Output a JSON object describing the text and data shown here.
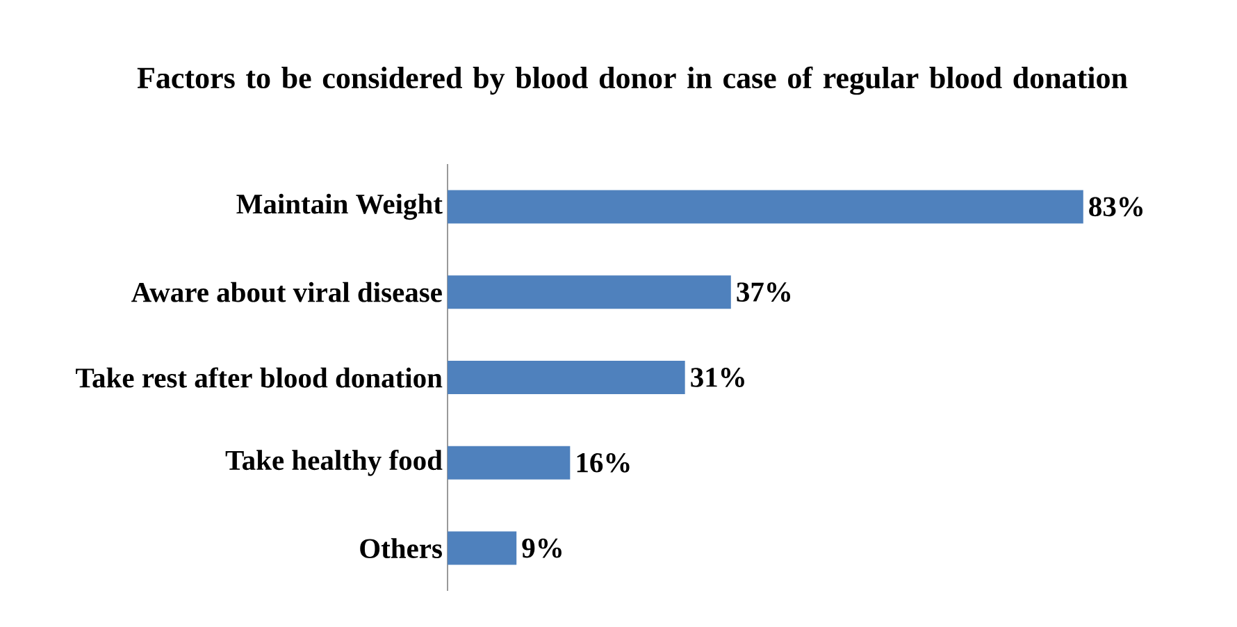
{
  "chart_data": {
    "type": "bar",
    "orientation": "horizontal",
    "title": "Factors to be considered by blood donor in case of regular blood donation",
    "categories": [
      "Maintain Weight",
      "Aware about viral disease",
      "Take rest after blood donation",
      "Take healthy food",
      "Others"
    ],
    "values": [
      83,
      37,
      31,
      16,
      9
    ],
    "value_labels": [
      "83%",
      "37%",
      "31%",
      "16%",
      "9%"
    ],
    "color": "#4f81bd"
  }
}
